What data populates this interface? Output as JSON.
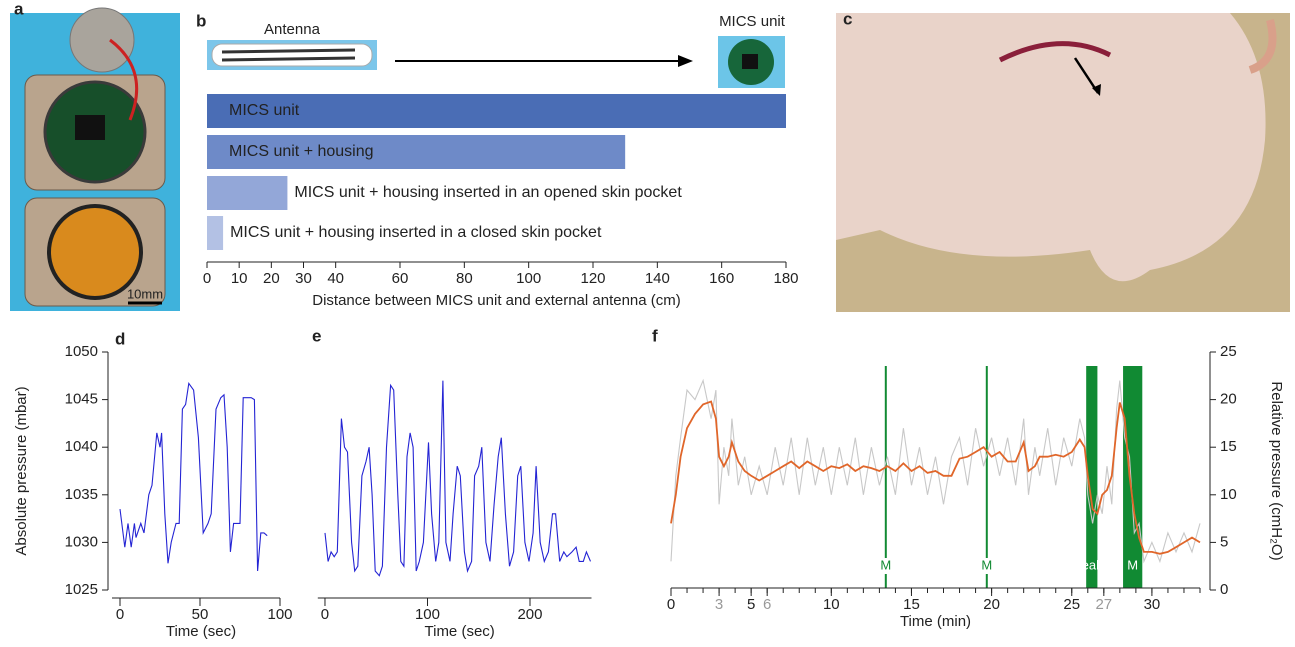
{
  "photos": [
    {
      "panel": "a",
      "scale_label": "10mm"
    },
    {
      "panel": "c"
    }
  ],
  "chart_data": [
    {
      "panel": "b",
      "type": "barh",
      "image_labels": [
        "Antenna",
        "MICS unit"
      ],
      "categories": [
        "MICS unit",
        "MICS unit + housing",
        "MICS unit + housing inserted in an opened skin pocket",
        "MICS unit + housing inserted in a closed skin pocket"
      ],
      "values": [
        180,
        130,
        25,
        5
      ],
      "colors": [
        "#4a6db5",
        "#6e8ac8",
        "#93a7d8",
        "#b3c1e4"
      ],
      "xlim": [
        0,
        180
      ],
      "xticks": [
        0,
        10,
        20,
        30,
        40,
        60,
        80,
        100,
        120,
        140,
        160,
        180
      ],
      "xlabel": "Distance between MICS unit and external antenna (cm)"
    },
    {
      "panel": "d",
      "type": "line",
      "x": [
        0,
        3,
        5,
        7,
        9,
        10,
        13,
        15,
        18,
        20,
        23,
        25,
        26,
        28,
        30,
        32,
        35,
        37,
        39,
        41,
        43,
        46,
        49,
        52,
        55,
        57,
        60,
        63,
        65,
        67,
        69,
        71,
        75,
        77,
        82,
        84,
        86,
        88,
        90,
        92
      ],
      "series": [
        {
          "color": "#2424d4",
          "values": [
            1033.5,
            1029.5,
            1032,
            1029.5,
            1032,
            1030.5,
            1032,
            1031,
            1035,
            1036,
            1041.5,
            1040,
            1041.5,
            1033,
            1027.8,
            1030,
            1032,
            1032,
            1044,
            1044.5,
            1046.7,
            1046,
            1041,
            1031,
            1032,
            1033,
            1044,
            1045.2,
            1045.5,
            1040,
            1029,
            1032,
            1032,
            1045.2,
            1045.2,
            1045,
            1027,
            1031,
            1031,
            1030.7
          ]
        }
      ],
      "xlim": [
        -5,
        100
      ],
      "xticks": [
        0,
        50,
        100
      ],
      "ylim": [
        1025,
        1050
      ],
      "yticks": [
        1025,
        1030,
        1035,
        1040,
        1045,
        1050
      ],
      "xlabel": "Time (sec)",
      "ylabel": "Absolute pressure (mbar)"
    },
    {
      "panel": "e",
      "type": "line",
      "x": [
        0,
        3,
        6,
        9,
        12,
        16,
        19,
        22,
        26,
        29,
        32,
        36,
        40,
        43,
        46,
        49,
        53,
        56,
        60,
        64,
        67,
        71,
        74,
        77,
        80,
        83,
        86,
        89,
        92,
        96,
        101,
        104,
        108,
        111,
        115,
        118,
        122,
        125,
        129,
        132,
        136,
        139,
        143,
        146,
        150,
        153,
        157,
        161,
        165,
        169,
        172,
        176,
        180,
        184,
        188,
        191,
        195,
        199,
        203,
        206,
        210,
        214,
        218,
        222,
        225,
        229,
        233,
        236,
        241,
        245,
        248,
        252,
        255,
        259
      ],
      "series": [
        {
          "color": "#2424d4",
          "values": [
            1031,
            1028,
            1029,
            1028.5,
            1029,
            1043,
            1040,
            1039.5,
            1030,
            1027,
            1027.5,
            1037,
            1038.5,
            1040,
            1035,
            1027,
            1026.5,
            1027.5,
            1040,
            1046.5,
            1046,
            1035,
            1028,
            1027.5,
            1039,
            1041.5,
            1040,
            1027,
            1028,
            1030,
            1040.5,
            1033,
            1028,
            1030,
            1047,
            1030,
            1028,
            1033,
            1038,
            1037,
            1029,
            1027,
            1028,
            1037,
            1038,
            1040,
            1030,
            1028,
            1034,
            1039,
            1041,
            1033,
            1027.5,
            1029,
            1037,
            1038,
            1030,
            1028,
            1031,
            1038,
            1030,
            1028,
            1029,
            1033,
            1033,
            1028,
            1029,
            1028.5,
            1029,
            1029.5,
            1028,
            1028,
            1029,
            1028
          ]
        }
      ],
      "xlim": [
        -7,
        260
      ],
      "xticks": [
        0,
        100,
        200
      ],
      "ylim": [
        1025,
        1050
      ],
      "xlabel": "Time (sec)"
    },
    {
      "panel": "f",
      "type": "line",
      "x": [
        0,
        0.3,
        0.6,
        1,
        1.5,
        2,
        2.5,
        2.8,
        3,
        3.3,
        3.6,
        3.8,
        4.2,
        4.6,
        5,
        5.5,
        6,
        6.5,
        7,
        7.5,
        8,
        8.5,
        9,
        9.5,
        10,
        10.5,
        11,
        11.5,
        12,
        12.5,
        13,
        13.5,
        14,
        14.5,
        15,
        15.5,
        16,
        16.5,
        17,
        17.5,
        18,
        18.5,
        19,
        19.5,
        20,
        20.5,
        21,
        21.5,
        22,
        22.3,
        22.7,
        23,
        23.5,
        24,
        24.5,
        25,
        25.5,
        25.8,
        26,
        26.3,
        26.6,
        26.9,
        27.2,
        27.5,
        27.8,
        28,
        28.3,
        28.6,
        28.9,
        29.2,
        29.5,
        30,
        30.5,
        31,
        31.5,
        32,
        32.5,
        33
      ],
      "series": [
        {
          "color": "#c8c8c8",
          "axis": "y2",
          "values": [
            3,
            12,
            16,
            21,
            20,
            22,
            18,
            21,
            9,
            15,
            12,
            18,
            11,
            14,
            10,
            13,
            10,
            15,
            11,
            16,
            10,
            16,
            11,
            15,
            10,
            15,
            11,
            16,
            10,
            15,
            11,
            14,
            10,
            17,
            11,
            15,
            10,
            14,
            9,
            14,
            16,
            11,
            17,
            13,
            16,
            12,
            16,
            11,
            18,
            10,
            15,
            12,
            17,
            11,
            16,
            13,
            18,
            16,
            10,
            7,
            10,
            8,
            13,
            9,
            19,
            22,
            16,
            14,
            6,
            7,
            3,
            5,
            3,
            6,
            4,
            6,
            4,
            7
          ]
        },
        {
          "color": "#e0662a",
          "axis": "y2",
          "values": [
            7,
            10,
            14,
            17,
            18.5,
            19.5,
            19.8,
            18,
            14,
            13,
            14,
            15.5,
            13.5,
            12.5,
            12,
            11.5,
            12,
            12.5,
            13,
            13.5,
            12.8,
            13.5,
            13,
            12.5,
            13,
            12.8,
            13.2,
            12.5,
            13,
            12.8,
            12.5,
            13,
            12.5,
            13.3,
            12.5,
            13,
            12.3,
            12.5,
            12,
            12,
            13.8,
            14,
            14.5,
            15,
            14,
            14.5,
            13.5,
            13.5,
            15.5,
            12.5,
            13,
            14,
            14,
            14.2,
            14,
            14.5,
            15.8,
            15,
            12,
            8.5,
            8,
            10,
            10.5,
            12,
            17,
            19.7,
            18,
            12,
            8,
            5.5,
            4,
            4,
            3.8,
            4,
            4.5,
            5,
            5.5,
            5
          ]
        }
      ],
      "markers": [
        {
          "label": "M",
          "x": 13.4
        },
        {
          "label": "M",
          "x": 19.7
        },
        {
          "label": "Leaks",
          "x": [
            25.9,
            26.6
          ]
        },
        {
          "label": "M",
          "x": [
            28.2,
            29.4
          ]
        }
      ],
      "marker_color": "#118a33",
      "xlim": [
        0,
        33
      ],
      "xticks": [
        0,
        3,
        5,
        6,
        10,
        15,
        20,
        25,
        27,
        30
      ],
      "xtick_colors": [
        "#222",
        "#999",
        "#222",
        "#999",
        "#222",
        "#222",
        "#222",
        "#222",
        "#999",
        "#222"
      ],
      "xminorticks": [
        0,
        1,
        2,
        3,
        4,
        5,
        6,
        7,
        8,
        9,
        10,
        11,
        12,
        13,
        14,
        15,
        16,
        17,
        18,
        19,
        20,
        21,
        22,
        23,
        24,
        25,
        26,
        27,
        28,
        29,
        30,
        31,
        32,
        33
      ],
      "y2lim": [
        0,
        25
      ],
      "y2ticks": [
        0,
        5,
        10,
        15,
        20,
        25
      ],
      "xlabel": "Time (min)",
      "ylabel": "Relative pressure (cmH₂O)"
    }
  ]
}
